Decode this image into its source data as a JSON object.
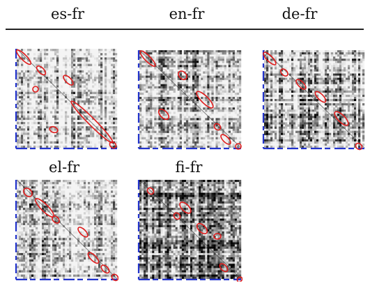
{
  "header": {
    "columns": [
      "es-fr",
      "en-fr",
      "de-fr"
    ]
  },
  "panels": [
    {
      "id": "es-fr",
      "label": "es-fr",
      "title_shown": false
    },
    {
      "id": "en-fr",
      "label": "en-fr",
      "title_shown": false
    },
    {
      "id": "de-fr",
      "label": "de-fr",
      "title_shown": false
    },
    {
      "id": "el-fr",
      "label": "el-fr",
      "title_shown": true
    },
    {
      "id": "fi-fr",
      "label": "fi-fr",
      "title_shown": true
    }
  ],
  "colors": {
    "highlight": "#e01b1b",
    "axis": "#2233cc",
    "matrix_dark": "#111111",
    "matrix_light": "#f4f4f4"
  }
}
